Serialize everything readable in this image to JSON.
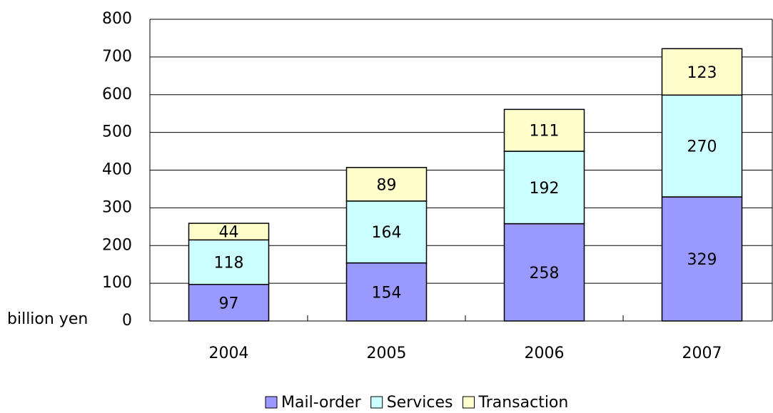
{
  "chart_data": {
    "type": "stacked_bar",
    "categories": [
      "2004",
      "2005",
      "2006",
      "2007"
    ],
    "series": [
      {
        "name": "Mail-order",
        "color": "#9999ff",
        "values": [
          97,
          154,
          258,
          329
        ]
      },
      {
        "name": "Services",
        "color": "#ccffff",
        "values": [
          118,
          164,
          192,
          270
        ]
      },
      {
        "name": "Transaction",
        "color": "#ffffcc",
        "values": [
          44,
          89,
          111,
          123
        ]
      }
    ],
    "ylabel": "billion yen",
    "ylim": [
      0,
      800
    ],
    "yticks": [
      0,
      100,
      200,
      300,
      400,
      500,
      600,
      700,
      800
    ],
    "grid": true,
    "legend": "bottom"
  }
}
